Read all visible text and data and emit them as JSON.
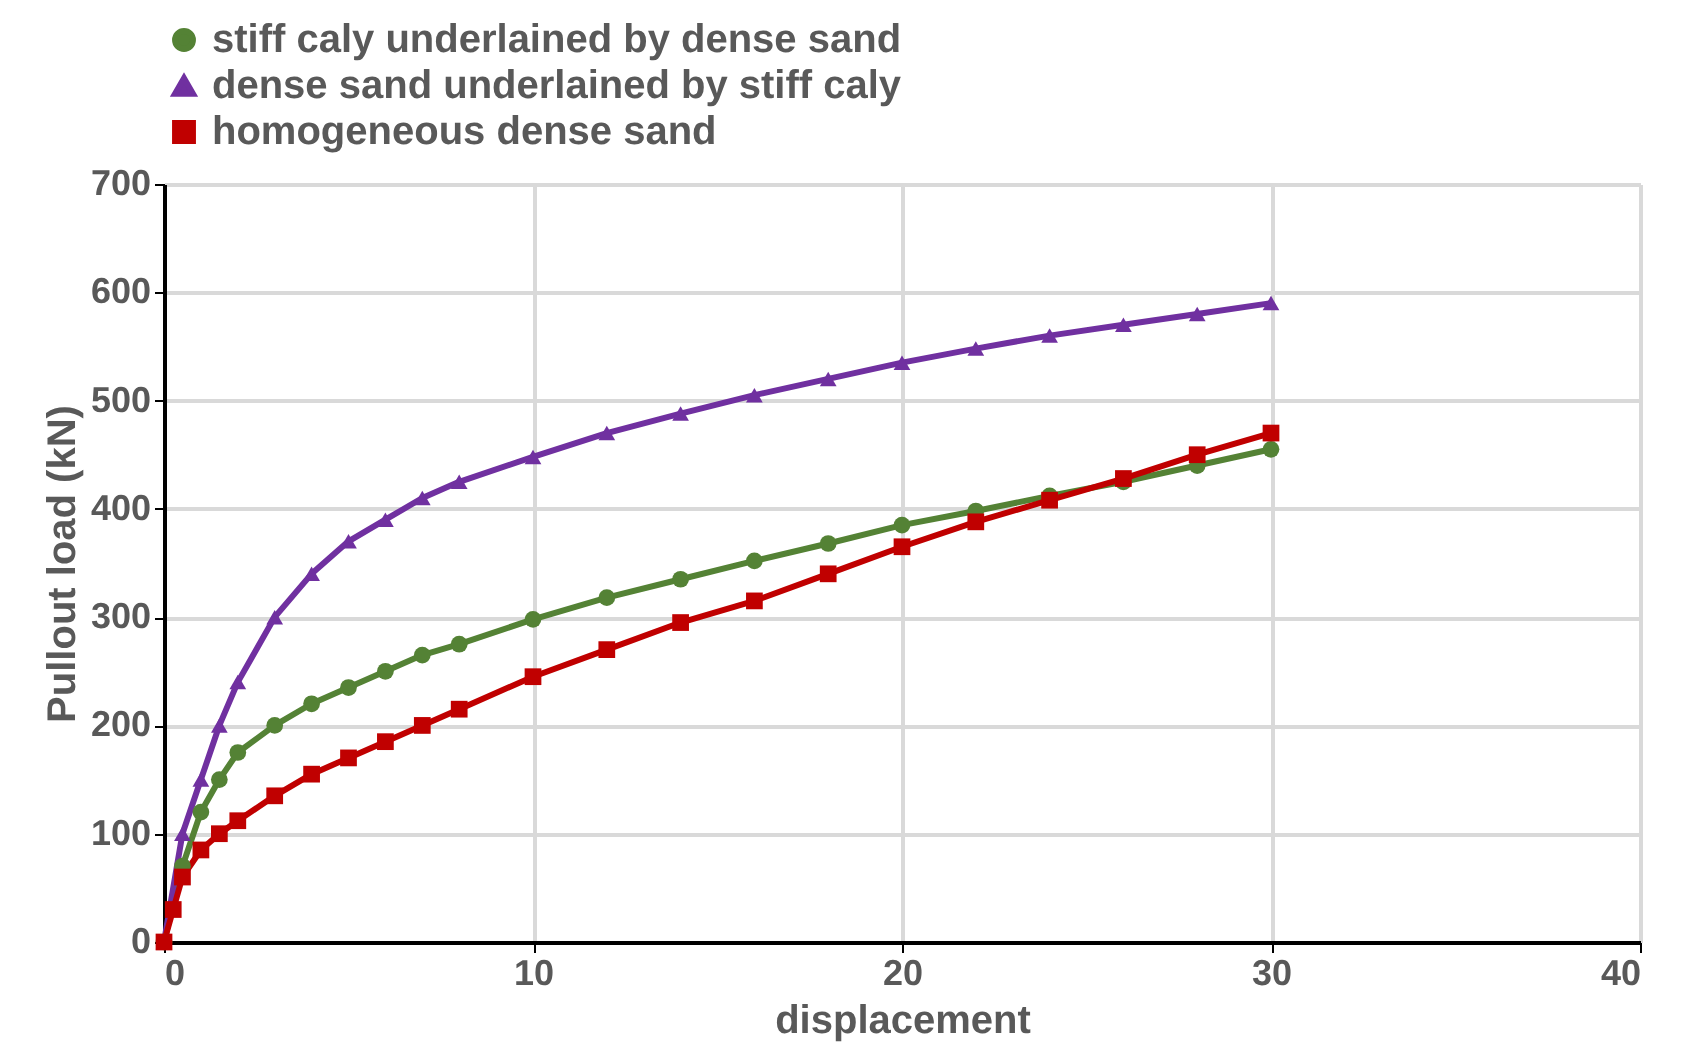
{
  "chart_data": {
    "type": "line",
    "xlabel": "displacement",
    "ylabel": "Pullout load (kN)",
    "xlim": [
      0,
      40
    ],
    "xticks": [
      0,
      10,
      20,
      30,
      40
    ],
    "ylim": [
      0,
      700
    ],
    "yticks": [
      0,
      100,
      200,
      300,
      400,
      500,
      600,
      700
    ],
    "grid": true,
    "legend": "top",
    "series": [
      {
        "name": "stiff caly underlained by dense sand",
        "color": "#548235",
        "marker": "circle",
        "x": [
          0,
          0.5,
          1,
          1.5,
          2,
          3,
          4,
          5,
          6,
          7,
          8,
          10,
          12,
          14,
          16,
          18,
          20,
          22,
          24,
          26,
          28,
          30
        ],
        "values": [
          0,
          70,
          120,
          150,
          175,
          200,
          220,
          235,
          250,
          265,
          275,
          298,
          318,
          335,
          352,
          368,
          385,
          398,
          412,
          425,
          440,
          455
        ]
      },
      {
        "name": "dense sand underlained by stiff caly",
        "color": "#7030a0",
        "marker": "triangle",
        "x": [
          0,
          0.5,
          1,
          1.5,
          2,
          3,
          4,
          5,
          6,
          7,
          8,
          10,
          12,
          14,
          16,
          18,
          20,
          22,
          24,
          26,
          28,
          30
        ],
        "values": [
          0,
          100,
          150,
          200,
          240,
          300,
          340,
          370,
          390,
          410,
          425,
          448,
          470,
          488,
          505,
          520,
          535,
          548,
          560,
          570,
          580,
          590
        ]
      },
      {
        "name": "homogeneous dense sand",
        "color": "#c00000",
        "marker": "square",
        "x": [
          0,
          0.25,
          0.5,
          1,
          1.5,
          2,
          3,
          4,
          5,
          6,
          7,
          8,
          10,
          12,
          14,
          16,
          18,
          20,
          22,
          24,
          26,
          28,
          30
        ],
        "values": [
          0,
          30,
          60,
          85,
          100,
          112,
          135,
          155,
          170,
          185,
          200,
          215,
          245,
          270,
          295,
          315,
          340,
          365,
          388,
          408,
          428,
          450,
          470
        ]
      }
    ]
  }
}
